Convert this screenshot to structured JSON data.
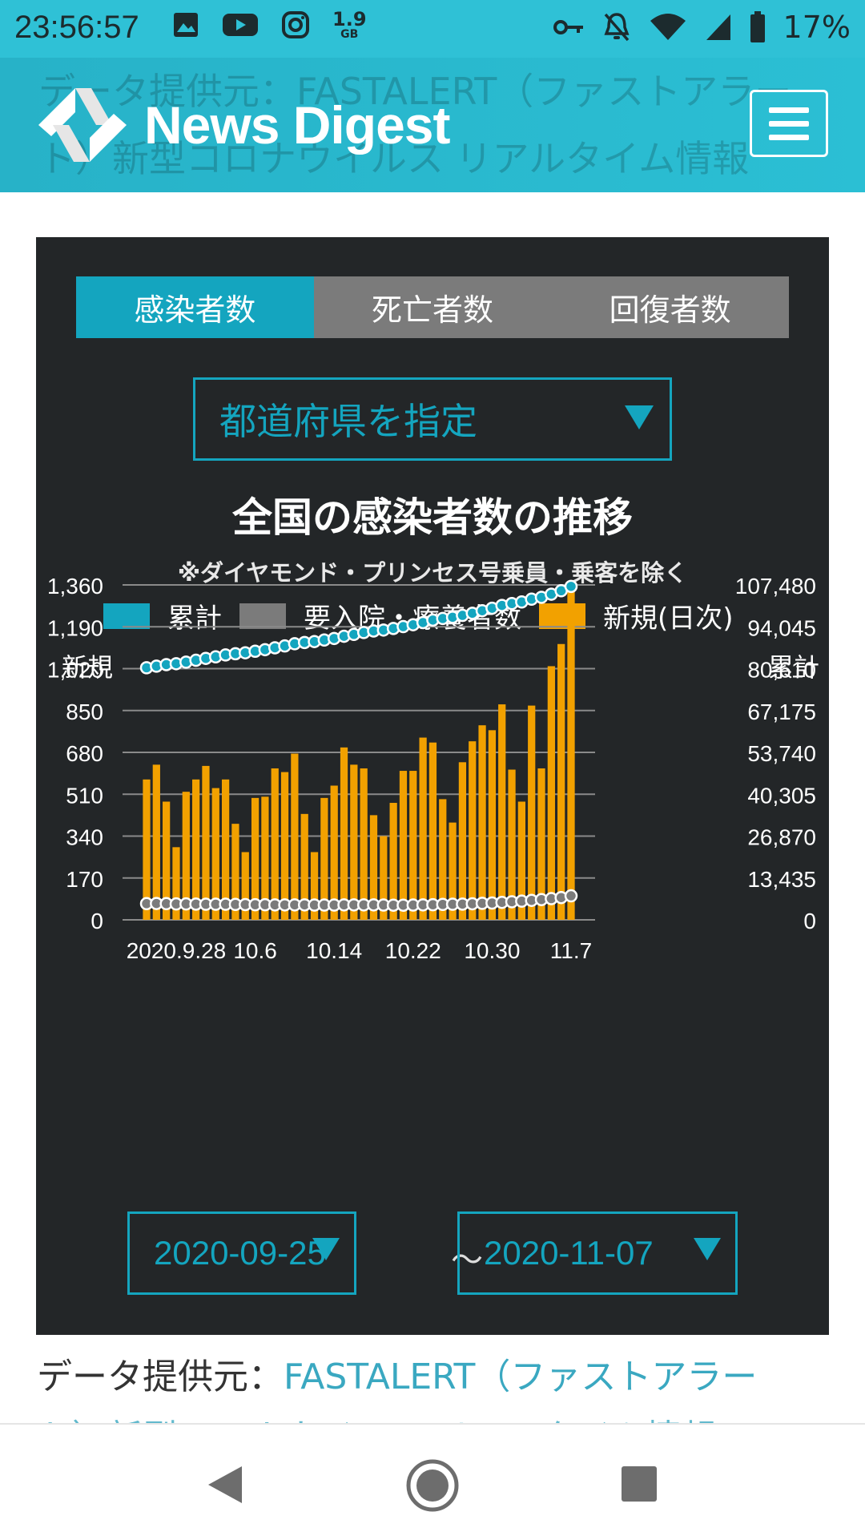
{
  "status_bar": {
    "time": "23:56:57",
    "data_usage": "1.9",
    "data_unit": "GB",
    "battery": "17%",
    "icons": [
      "image-icon",
      "youtube-icon",
      "instagram-icon",
      "key-icon",
      "bell-off-icon",
      "wifi-icon",
      "signal-icon",
      "battery-icon"
    ]
  },
  "header": {
    "brand": "News Digest",
    "ghost_line1": "データ提供元：FASTALERT（ファストアラー",
    "ghost_line2": "ト）新型コロナウイルス リアルタイム情報"
  },
  "tabs": [
    {
      "label": "感染者数",
      "active": true
    },
    {
      "label": "死亡者数",
      "active": false
    },
    {
      "label": "回復者数",
      "active": false
    }
  ],
  "prefecture_select": {
    "label": "都道府県を指定"
  },
  "chart_data": {
    "type": "bar+line",
    "title": "全国の感染者数の推移",
    "subtitle": "※ダイヤモンド・プリンセス号乗員・乗客を除く",
    "legend": [
      {
        "name": "累計",
        "color": "#14a5bf"
      },
      {
        "name": "要入院・療養者数",
        "color": "#7b7b7b"
      },
      {
        "name": "新規(日次)",
        "color": "#f2a100"
      }
    ],
    "left_axis_title": "新規",
    "right_axis_title": "累計",
    "left_ticks": [
      "0",
      "170",
      "340",
      "510",
      "680",
      "850",
      "1,020",
      "1,190",
      "1,360"
    ],
    "right_ticks": [
      "0",
      "13,435",
      "26,870",
      "40,305",
      "53,740",
      "67,175",
      "80,610",
      "94,045",
      "107,480"
    ],
    "left_range": [
      0,
      1360
    ],
    "right_range": [
      0,
      107480
    ],
    "x_labels": [
      {
        "label": "2020.9.28",
        "index": 3
      },
      {
        "label": "10.6",
        "index": 11
      },
      {
        "label": "10.14",
        "index": 19
      },
      {
        "label": "10.22",
        "index": 27
      },
      {
        "label": "10.30",
        "index": 35
      },
      {
        "label": "11.7",
        "index": 43
      }
    ],
    "dates": [
      "9.25",
      "9.26",
      "9.27",
      "9.28",
      "9.29",
      "9.30",
      "10.1",
      "10.2",
      "10.3",
      "10.4",
      "10.5",
      "10.6",
      "10.7",
      "10.8",
      "10.9",
      "10.10",
      "10.11",
      "10.12",
      "10.13",
      "10.14",
      "10.15",
      "10.16",
      "10.17",
      "10.18",
      "10.19",
      "10.20",
      "10.21",
      "10.22",
      "10.23",
      "10.24",
      "10.25",
      "10.26",
      "10.27",
      "10.28",
      "10.29",
      "10.30",
      "10.31",
      "11.1",
      "11.2",
      "11.3",
      "11.4",
      "11.5",
      "11.6",
      "11.7"
    ],
    "new_daily": [
      570,
      630,
      480,
      295,
      520,
      570,
      625,
      535,
      570,
      390,
      275,
      495,
      500,
      615,
      600,
      675,
      430,
      275,
      495,
      545,
      700,
      630,
      615,
      425,
      340,
      475,
      605,
      605,
      740,
      720,
      490,
      395,
      640,
      725,
      790,
      770,
      875,
      610,
      480,
      870,
      615,
      1030,
      1120,
      1335
    ],
    "cumulative": [
      80900,
      81400,
      81900,
      82200,
      82700,
      83300,
      83900,
      84400,
      85000,
      85400,
      85700,
      86200,
      86700,
      87300,
      87900,
      88600,
      89000,
      89300,
      89800,
      90300,
      91000,
      91600,
      92200,
      92700,
      93000,
      93500,
      94100,
      94700,
      95400,
      96200,
      96700,
      97100,
      97700,
      98400,
      99200,
      100000,
      100900,
      101500,
      102000,
      102900,
      103500,
      104500,
      105600,
      107000
    ],
    "hospitalized": [
      5200,
      5250,
      5200,
      5100,
      5100,
      5050,
      5000,
      5000,
      5000,
      4950,
      4900,
      4850,
      4850,
      4800,
      4800,
      4800,
      4800,
      4750,
      4750,
      4750,
      4800,
      4800,
      4800,
      4800,
      4750,
      4700,
      4700,
      4750,
      4800,
      4850,
      4950,
      5000,
      5050,
      5150,
      5300,
      5400,
      5600,
      5800,
      6000,
      6250,
      6500,
      6800,
      7150,
      7700
    ]
  },
  "date_range": {
    "start": "2020-09-25",
    "separator": "～",
    "end": "2020-11-07"
  },
  "source": {
    "prefix": "データ提供元：",
    "link": "FASTALERT（ファストアラー",
    "line2": "ト）新型コロナウイルス リアルタイム情報"
  },
  "colors": {
    "accent": "#14a5bf",
    "bar": "#f2a100",
    "hospitalized": "#7b7b7b",
    "panel_bg": "#232628"
  }
}
